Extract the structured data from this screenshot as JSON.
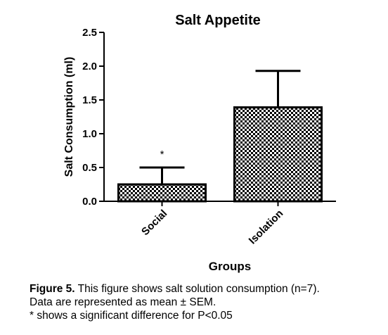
{
  "chart_data": {
    "type": "bar",
    "title": "Salt Appetite",
    "xlabel": "Groups",
    "ylabel": "Salt Consumption (ml)",
    "ylim": [
      0,
      2.5
    ],
    "yticks": [
      "0.0",
      "0.5",
      "1.0",
      "1.5",
      "2.0",
      "2.5"
    ],
    "categories": [
      "Social",
      "Isolation"
    ],
    "values": [
      0.25,
      1.39
    ],
    "error_upper": [
      0.5,
      1.93
    ],
    "annotations": [
      {
        "category": "Social",
        "text": "*"
      }
    ],
    "grid": false,
    "legend": "none",
    "bar_fill": "checkered",
    "colors": {
      "bar_dark": "#000000",
      "bar_light": "#ffffff",
      "axis": "#000000"
    }
  },
  "caption": {
    "label": "Figure 5.",
    "line1": " This figure shows salt solution consumption (n=7).",
    "line2": "Data are represented as mean ± SEM.",
    "line3": "* shows a significant difference for P<0.05"
  }
}
